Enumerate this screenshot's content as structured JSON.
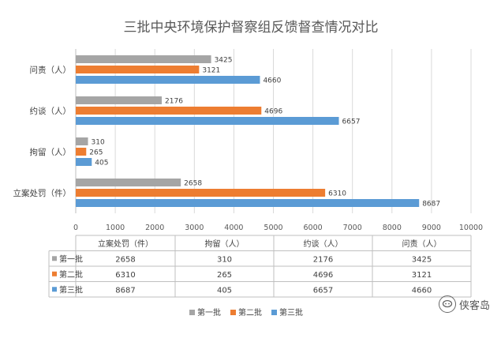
{
  "chart_data": {
    "type": "bar",
    "orientation": "horizontal",
    "title": "三批中央环境保护督察组反馈督查情况对比",
    "categories": [
      "立案处罚（件）",
      "拘留（人）",
      "约谈（人）",
      "问责（人）"
    ],
    "series": [
      {
        "name": "第一批",
        "color": "#a5a5a5",
        "values": [
          2658,
          310,
          2176,
          3425
        ]
      },
      {
        "name": "第二批",
        "color": "#ed7d31",
        "values": [
          6310,
          265,
          4696,
          3121
        ]
      },
      {
        "name": "第三批",
        "color": "#5b9bd5",
        "values": [
          8687,
          405,
          6657,
          4660
        ]
      }
    ],
    "xlim": [
      0,
      10000
    ],
    "xticks": [
      0,
      1000,
      2000,
      3000,
      4000,
      5000,
      6000,
      7000,
      8000,
      9000,
      10000
    ],
    "grid": true,
    "data_labels": true,
    "data_table": true,
    "legend_position": "bottom"
  },
  "watermark": {
    "text": "侠客岛"
  }
}
